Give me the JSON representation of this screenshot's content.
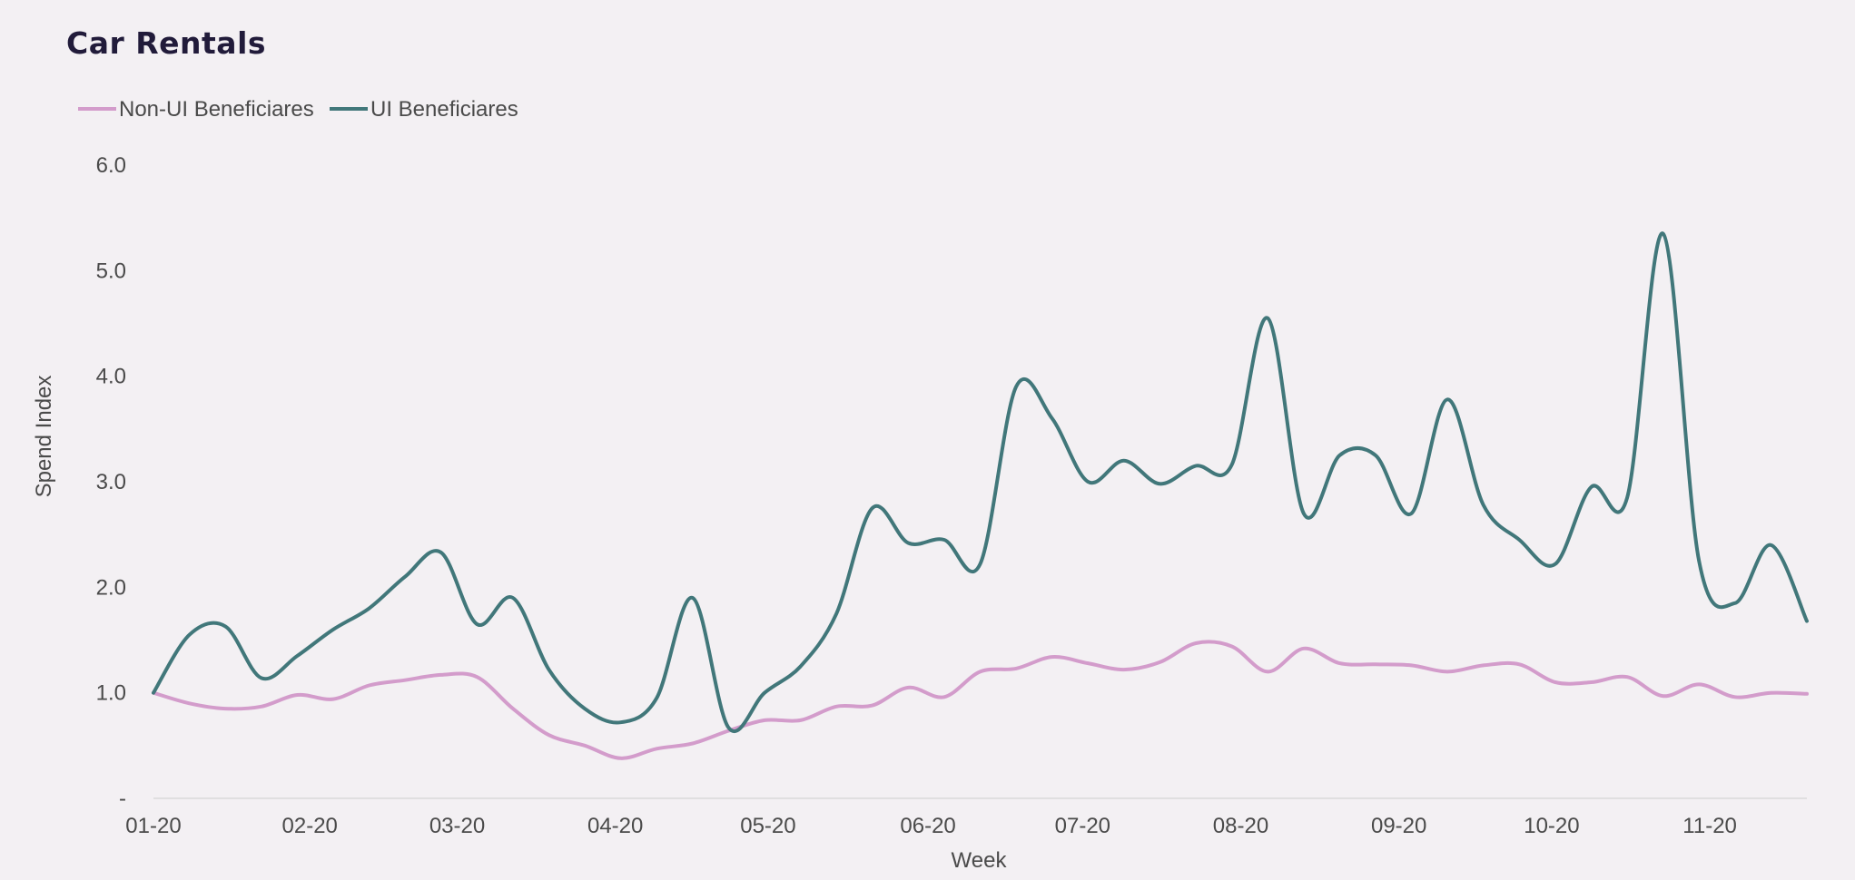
{
  "chart_data": {
    "type": "line",
    "title": "Car Rentals",
    "xlabel": "Week",
    "ylabel": "Spend Index",
    "ylim": [
      0,
      6
    ],
    "y_ticks": [
      {
        "value": 0,
        "label": "-"
      },
      {
        "value": 1,
        "label": "1.0"
      },
      {
        "value": 2,
        "label": "2.0"
      },
      {
        "value": 3,
        "label": "3.0"
      },
      {
        "value": 4,
        "label": "4.0"
      },
      {
        "value": 5,
        "label": "5.0"
      },
      {
        "value": 6,
        "label": "6.0"
      }
    ],
    "x_ticks": [
      {
        "week": 0,
        "label": "01-20"
      },
      {
        "week": 4.35,
        "label": "02-20"
      },
      {
        "week": 8.45,
        "label": "03-20"
      },
      {
        "week": 12.85,
        "label": "04-20"
      },
      {
        "week": 17.1,
        "label": "05-20"
      },
      {
        "week": 21.55,
        "label": "06-20"
      },
      {
        "week": 25.85,
        "label": "07-20"
      },
      {
        "week": 30.25,
        "label": "08-20"
      },
      {
        "week": 34.65,
        "label": "09-20"
      },
      {
        "week": 38.9,
        "label": "10-20"
      },
      {
        "week": 43.3,
        "label": "11-20"
      }
    ],
    "grid": false,
    "legend_position": "top-left",
    "smooth": true,
    "x": [
      0,
      1,
      2,
      3,
      4,
      5,
      6,
      7,
      8,
      9,
      10,
      11,
      12,
      13,
      14,
      15,
      16,
      17,
      18,
      19,
      20,
      21,
      22,
      23,
      24,
      25,
      26,
      27,
      28,
      29,
      30,
      31,
      32,
      33,
      34,
      35,
      36,
      37,
      38,
      39,
      40,
      41,
      42,
      43,
      44,
      45,
      46
    ],
    "series": [
      {
        "name": "Non-UI Beneficiares",
        "color": "#d39ccb",
        "values": [
          1.0,
          0.9,
          0.85,
          0.87,
          0.98,
          0.94,
          1.07,
          1.12,
          1.17,
          1.15,
          0.85,
          0.6,
          0.5,
          0.38,
          0.47,
          0.52,
          0.64,
          0.74,
          0.74,
          0.87,
          0.88,
          1.05,
          0.96,
          1.2,
          1.23,
          1.34,
          1.28,
          1.22,
          1.29,
          1.47,
          1.44,
          1.2,
          1.42,
          1.28,
          1.27,
          1.26,
          1.2,
          1.26,
          1.27,
          1.1,
          1.1,
          1.15,
          0.97,
          1.08,
          0.96,
          1.0,
          0.99
        ]
      },
      {
        "name": "UI Beneficiares",
        "color": "#41777a",
        "values": [
          1.0,
          1.55,
          1.63,
          1.14,
          1.35,
          1.6,
          1.8,
          2.1,
          2.33,
          1.65,
          1.9,
          1.22,
          0.85,
          0.72,
          0.95,
          1.9,
          0.67,
          1.0,
          1.25,
          1.75,
          2.75,
          2.42,
          2.45,
          2.22,
          3.9,
          3.6,
          3.0,
          3.2,
          2.98,
          3.15,
          3.16,
          4.55,
          2.7,
          3.25,
          3.25,
          2.7,
          3.78,
          2.78,
          2.45,
          2.22,
          2.95,
          2.85,
          5.35,
          2.25,
          1.85,
          2.4,
          1.68
        ]
      }
    ]
  }
}
